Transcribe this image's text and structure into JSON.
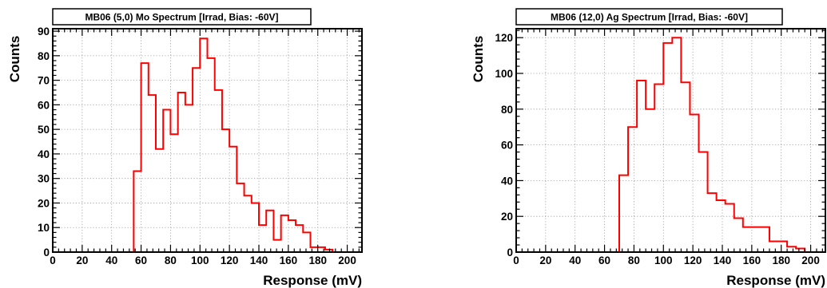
{
  "chart_data": [
    {
      "type": "histogram",
      "title": "MB06 (5,0) Mo Spectrum [Irrad, Bias: -60V]",
      "xlabel": "Response (mV)",
      "ylabel": "Counts",
      "xlim": [
        0,
        210
      ],
      "ylim": [
        0,
        91
      ],
      "xticks": [
        0,
        20,
        40,
        60,
        80,
        100,
        120,
        140,
        160,
        180,
        200
      ],
      "yticks": [
        0,
        10,
        20,
        30,
        40,
        50,
        60,
        70,
        80,
        90
      ],
      "grid": true,
      "color": "#ff0000",
      "bin_width": 5,
      "bin_edges_start": [
        55,
        60,
        65,
        70,
        75,
        80,
        85,
        90,
        95,
        100,
        105,
        110,
        115,
        120,
        125,
        130,
        135,
        140,
        145,
        150,
        155,
        160,
        165,
        170,
        175,
        180,
        185,
        190
      ],
      "values": [
        33,
        77,
        64,
        42,
        58,
        48,
        65,
        60,
        75,
        87,
        79,
        66,
        50,
        43,
        28,
        23,
        20,
        11,
        17,
        5,
        15,
        13,
        11,
        8,
        2,
        2,
        1,
        0
      ]
    },
    {
      "type": "histogram",
      "title": "MB06 (12,0) Ag Spectrum [Irrad, Bias: -60V]",
      "xlabel": "Response (mV)",
      "ylabel": "Counts",
      "xlim": [
        0,
        210
      ],
      "ylim": [
        0,
        125
      ],
      "xticks": [
        0,
        20,
        40,
        60,
        80,
        100,
        120,
        140,
        160,
        180,
        200
      ],
      "yticks": [
        0,
        20,
        40,
        60,
        80,
        100,
        120
      ],
      "grid": true,
      "color": "#ff0000",
      "bin_width": 6,
      "bin_edges_start": [
        70,
        76,
        82,
        88,
        94,
        100,
        106,
        112,
        118,
        124,
        130,
        136,
        142,
        148,
        154,
        160,
        166,
        172,
        178,
        184,
        190,
        196
      ],
      "values": [
        43,
        70,
        96,
        80,
        94,
        117,
        120,
        95,
        77,
        56,
        33,
        29,
        27,
        19,
        14,
        14,
        14,
        6,
        6,
        3,
        2,
        0
      ]
    }
  ]
}
